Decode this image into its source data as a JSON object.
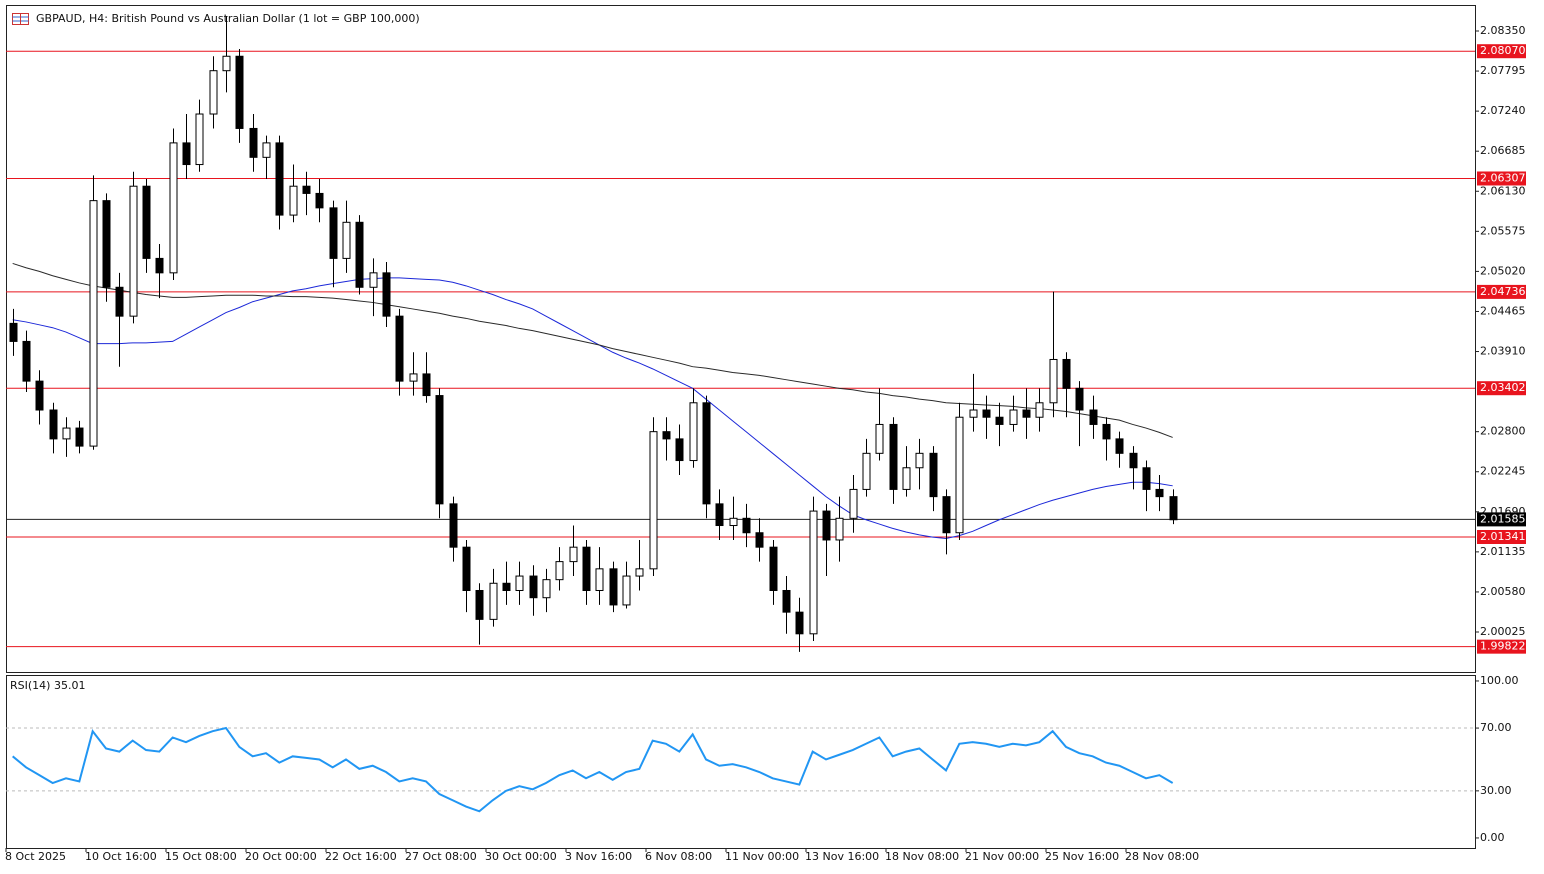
{
  "chart_data": {
    "type": "candlestick",
    "title": "GBPAUD, H4:  British Pound vs Australian Dollar (1 lot = GBP 100,000)",
    "categories": [
      "8 Oct 2025",
      null,
      null,
      null,
      null,
      null,
      "10 Oct 16:00",
      null,
      null,
      null,
      null,
      null,
      "15 Oct 08:00",
      null,
      null,
      null,
      null,
      null,
      "20 Oct 00:00",
      null,
      null,
      null,
      null,
      null,
      "22 Oct 16:00",
      null,
      null,
      null,
      null,
      null,
      "27 Oct 08:00",
      null,
      null,
      null,
      null,
      null,
      "30 Oct 00:00",
      null,
      null,
      null,
      null,
      null,
      "3 Nov 16:00",
      null,
      null,
      null,
      null,
      null,
      "6 Nov 08:00",
      null,
      null,
      null,
      null,
      null,
      "11 Nov 00:00",
      null,
      null,
      null,
      null,
      null,
      "13 Nov 16:00",
      null,
      null,
      null,
      null,
      null,
      "18 Nov 08:00",
      null,
      null,
      null,
      null,
      null,
      "21 Nov 00:00",
      null,
      null,
      null,
      null,
      null,
      "25 Nov 16:00",
      null,
      null,
      null,
      null,
      null,
      "28 Nov 08:00",
      null,
      null,
      null
    ],
    "open": [
      2.043,
      2.0405,
      2.035,
      2.031,
      2.027,
      2.0285,
      2.026,
      2.06,
      2.048,
      2.044,
      2.062,
      2.052,
      2.05,
      2.068,
      2.065,
      2.072,
      2.078,
      2.08,
      2.07,
      2.066,
      2.068,
      2.058,
      2.062,
      2.061,
      2.059,
      2.052,
      2.057,
      2.048,
      2.05,
      2.044,
      2.035,
      2.036,
      2.033,
      2.018,
      2.012,
      2.006,
      2.002,
      2.007,
      2.006,
      2.008,
      2.005,
      2.0075,
      2.01,
      2.012,
      2.006,
      2.009,
      2.004,
      2.008,
      2.009,
      2.028,
      2.027,
      2.024,
      2.032,
      2.018,
      2.015,
      2.016,
      2.014,
      2.012,
      2.006,
      2.003,
      2.0,
      2.017,
      2.013,
      2.016,
      2.02,
      2.025,
      2.029,
      2.02,
      2.023,
      2.025,
      2.019,
      2.014,
      2.03,
      2.031,
      2.03,
      2.029,
      2.031,
      2.03,
      2.032,
      2.038,
      2.034,
      2.031,
      2.029,
      2.027,
      2.025,
      2.023,
      2.02,
      2.019
    ],
    "high": [
      2.045,
      2.042,
      2.0365,
      2.032,
      2.03,
      2.0295,
      2.0635,
      2.061,
      2.05,
      2.064,
      2.063,
      2.054,
      2.07,
      2.072,
      2.074,
      2.08,
      2.0855,
      2.081,
      2.072,
      2.069,
      2.069,
      2.065,
      2.064,
      2.063,
      2.06,
      2.06,
      2.058,
      2.052,
      2.0515,
      2.045,
      2.039,
      2.039,
      2.034,
      2.019,
      2.013,
      2.007,
      2.009,
      2.01,
      2.01,
      2.0095,
      2.009,
      2.012,
      2.015,
      2.013,
      2.012,
      2.01,
      2.01,
      2.013,
      2.03,
      2.03,
      2.029,
      2.034,
      2.033,
      2.02,
      2.019,
      2.018,
      2.016,
      2.013,
      2.008,
      2.005,
      2.019,
      2.018,
      2.019,
      2.022,
      2.027,
      2.034,
      2.03,
      2.026,
      2.027,
      2.026,
      2.02,
      2.032,
      2.036,
      2.033,
      2.032,
      2.033,
      2.034,
      2.034,
      2.0474,
      2.039,
      2.035,
      2.033,
      2.03,
      2.028,
      2.026,
      2.024,
      2.022,
      2.02
    ],
    "low": [
      2.0385,
      2.0335,
      2.029,
      2.025,
      2.0245,
      2.025,
      2.0255,
      2.046,
      2.037,
      2.043,
      2.05,
      2.0465,
      2.049,
      2.063,
      2.064,
      2.07,
      2.075,
      2.068,
      2.064,
      2.063,
      2.056,
      2.057,
      2.058,
      2.057,
      2.048,
      2.05,
      2.047,
      2.044,
      2.0425,
      2.033,
      2.033,
      2.032,
      2.016,
      2.01,
      2.003,
      1.9985,
      2.001,
      2.004,
      2.004,
      2.0025,
      2.003,
      2.006,
      2.008,
      2.004,
      2.004,
      2.003,
      2.0035,
      2.006,
      2.008,
      2.024,
      2.022,
      2.023,
      2.016,
      2.013,
      2.013,
      2.012,
      2.01,
      2.004,
      2.0,
      1.9975,
      1.999,
      2.008,
      2.01,
      2.014,
      2.019,
      2.024,
      2.018,
      2.019,
      2.02,
      2.017,
      2.011,
      2.013,
      2.028,
      2.027,
      2.026,
      2.028,
      2.027,
      2.028,
      2.03,
      2.03,
      2.026,
      2.027,
      2.024,
      2.023,
      2.02,
      2.017,
      2.017,
      2.0152
    ],
    "close": [
      2.0405,
      2.035,
      2.031,
      2.027,
      2.0285,
      2.026,
      2.06,
      2.048,
      2.044,
      2.062,
      2.052,
      2.05,
      2.068,
      2.065,
      2.072,
      2.078,
      2.08,
      2.07,
      2.066,
      2.068,
      2.058,
      2.062,
      2.061,
      2.059,
      2.052,
      2.057,
      2.048,
      2.05,
      2.044,
      2.035,
      2.036,
      2.033,
      2.018,
      2.012,
      2.006,
      2.002,
      2.007,
      2.006,
      2.008,
      2.005,
      2.0075,
      2.01,
      2.012,
      2.006,
      2.009,
      2.004,
      2.008,
      2.009,
      2.028,
      2.027,
      2.024,
      2.032,
      2.018,
      2.015,
      2.016,
      2.014,
      2.012,
      2.006,
      2.003,
      2.0,
      2.017,
      2.013,
      2.016,
      2.02,
      2.025,
      2.029,
      2.02,
      2.023,
      2.025,
      2.019,
      2.014,
      2.03,
      2.031,
      2.03,
      2.029,
      2.031,
      2.03,
      2.032,
      2.038,
      2.034,
      2.031,
      2.029,
      2.027,
      2.025,
      2.023,
      2.02,
      2.019,
      2.0158
    ],
    "moving_averages": [
      {
        "color": "#1c28d8",
        "values": [
          2.0435,
          2.0432,
          2.0428,
          2.0424,
          2.0418,
          2.041,
          2.0402,
          2.0402,
          2.0402,
          2.0403,
          2.0403,
          2.0404,
          2.0405,
          2.0415,
          2.0425,
          2.0435,
          2.0445,
          2.0452,
          2.046,
          2.0465,
          2.047,
          2.0475,
          2.0478,
          2.0482,
          2.0485,
          2.0488,
          2.0491,
          2.0492,
          2.0493,
          2.0493,
          2.0492,
          2.0491,
          2.049,
          2.0487,
          2.0482,
          2.0476,
          2.047,
          2.0463,
          2.0457,
          2.045,
          2.044,
          2.043,
          2.042,
          2.041,
          2.04,
          2.039,
          2.0382,
          2.0375,
          2.0367,
          2.0358,
          2.0349,
          2.034,
          2.0325,
          2.031,
          2.0295,
          2.028,
          2.0265,
          2.025,
          2.0235,
          2.022,
          2.0205,
          2.019,
          2.0177,
          2.0165,
          2.0158,
          2.0152,
          2.0146,
          2.0141,
          2.0137,
          2.0134,
          2.0132,
          2.0136,
          2.0142,
          2.015,
          2.0158,
          2.0165,
          2.0172,
          2.0179,
          2.0185,
          2.019,
          2.0195,
          2.02,
          2.0204,
          2.0207,
          2.021,
          2.021,
          2.0208,
          2.0205
        ]
      },
      {
        "color": "#2a2a2a",
        "values": [
          2.0513,
          2.0507,
          2.0502,
          2.0496,
          2.0491,
          2.0486,
          2.0482,
          2.0479,
          2.0476,
          2.0473,
          2.047,
          2.0468,
          2.0466,
          2.0466,
          2.0467,
          2.0468,
          2.0469,
          2.0469,
          2.0469,
          2.0468,
          2.0468,
          2.0467,
          2.0467,
          2.0466,
          2.0465,
          2.0463,
          2.0461,
          2.0459,
          2.0456,
          2.0453,
          2.045,
          2.0447,
          2.0444,
          2.044,
          2.0437,
          2.0433,
          2.043,
          2.0427,
          2.0423,
          2.042,
          2.0416,
          2.0412,
          2.0408,
          2.0404,
          2.04,
          2.0395,
          2.0391,
          2.0387,
          2.0383,
          2.0379,
          2.0375,
          2.037,
          2.0368,
          2.0365,
          2.0362,
          2.036,
          2.0358,
          2.0355,
          2.0352,
          2.0349,
          2.0346,
          2.0343,
          2.034,
          2.0338,
          2.0335,
          2.0333,
          2.033,
          2.0328,
          2.0325,
          2.0323,
          2.032,
          2.0319,
          2.0318,
          2.0317,
          2.0316,
          2.0315,
          2.0313,
          2.0312,
          2.031,
          2.0308,
          2.0305,
          2.0302,
          2.0299,
          2.0296,
          2.029,
          2.0285,
          2.0279,
          2.0272
        ]
      }
    ],
    "ylim": [
      1.99471,
      2.0871
    ],
    "yticks": [
      {
        "value": 2.0835,
        "label": "2.08350"
      },
      2.07795,
      {
        "value": 2.0724,
        "label": "2.07240"
      },
      2.06685,
      {
        "value": 2.0613,
        "label": "2.06130"
      },
      2.05575,
      {
        "value": 2.0502,
        "label": "2.05020"
      },
      2.04465,
      {
        "value": 2.0391,
        "label": "2.03910"
      },
      {
        "value": 2.028,
        "label": "2.02800"
      },
      2.02245,
      {
        "value": 2.0169,
        "label": "2.01690"
      },
      2.01135,
      {
        "value": 2.0058,
        "label": "2.00580"
      },
      2.00025
    ],
    "level_color": "#e8141e",
    "levels": [
      {
        "value": 2.0807,
        "label": "2.08070"
      },
      2.06307,
      2.04736,
      {
        "value": 2.03402,
        "label": "2.03402"
      },
      2.01341,
      1.99822
    ],
    "last_price": 2.01585,
    "rsi": {
      "title": "RSI(14) 35.01",
      "color": "#2196f3",
      "ylim": [
        -6.4,
        103.8
      ],
      "yticks": [
        {
          "value": 100,
          "label": "100.00"
        },
        {
          "value": 70,
          "label": "70.00"
        },
        {
          "value": 30,
          "label": "30.00"
        },
        {
          "value": 0,
          "label": "0.00"
        }
      ],
      "values": [
        52,
        45,
        40,
        35,
        38,
        36,
        68,
        57,
        55,
        62,
        56,
        55,
        64,
        61,
        65,
        68,
        70,
        58,
        52,
        54,
        48,
        52,
        51,
        50,
        45,
        50,
        44,
        46,
        42,
        36,
        38,
        36,
        28,
        24,
        20,
        17,
        24,
        30,
        33,
        31,
        35,
        40,
        43,
        38,
        42,
        37,
        42,
        44,
        62,
        60,
        55,
        66,
        50,
        46,
        47,
        45,
        42,
        38,
        36,
        34,
        55,
        50,
        53,
        56,
        60,
        64,
        52,
        55,
        57,
        50,
        43,
        60,
        61,
        60,
        58,
        60,
        59,
        61,
        68,
        58,
        54,
        52,
        48,
        46,
        42,
        38,
        40,
        35.01
      ]
    }
  }
}
